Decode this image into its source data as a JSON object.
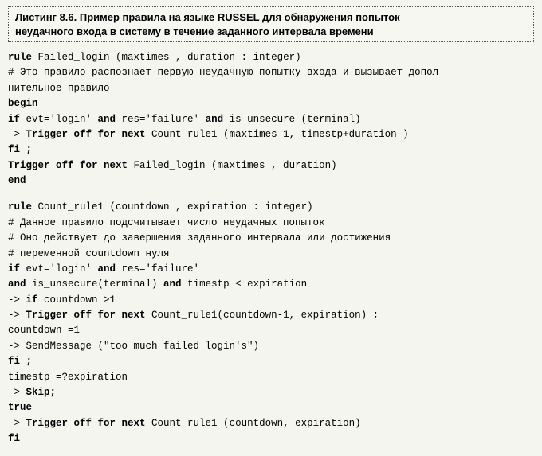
{
  "title": {
    "line1": "Листинг 8.6. Пример правила на языке RUSSEL для обнаружения попыток",
    "line2": "неудачного входа в систему в течение заданного интервала времени"
  },
  "lines": [
    {
      "segs": [
        {
          "t": "rule ",
          "b": true
        },
        {
          "t": "Failed_login (maxtimes , duration : integer)"
        }
      ]
    },
    {
      "segs": [
        {
          "t": "# Это правило распознает первую неудачную попытку входа и вызывает допол-"
        }
      ]
    },
    {
      "segs": [
        {
          "t": "нительное правило"
        }
      ]
    },
    {
      "segs": [
        {
          "t": "begin",
          "b": true
        }
      ]
    },
    {
      "segs": [
        {
          "t": "if ",
          "b": true
        },
        {
          "t": "evt='login' "
        },
        {
          "t": "and ",
          "b": true
        },
        {
          "t": "res='failure' "
        },
        {
          "t": "and ",
          "b": true
        },
        {
          "t": "is_unsecure (terminal)"
        }
      ]
    },
    {
      "segs": [
        {
          "t": "-> "
        },
        {
          "t": "Trigger off for next ",
          "b": true
        },
        {
          "t": "Count_rule1 (maxtimes-1, timestp+duration )"
        }
      ]
    },
    {
      "segs": [
        {
          "t": "fi ;",
          "b": true
        }
      ]
    },
    {
      "segs": [
        {
          "t": "Trigger off for next ",
          "b": true
        },
        {
          "t": "Failed_login (maxtimes , duration)"
        }
      ]
    },
    {
      "segs": [
        {
          "t": "end",
          "b": true
        }
      ]
    },
    {
      "blank": true
    },
    {
      "segs": [
        {
          "t": "rule ",
          "b": true
        },
        {
          "t": "Count_rule1 (countdown , expiration : integer)"
        }
      ]
    },
    {
      "segs": [
        {
          "t": "# Данное правило подсчитывает число неудачных попыток"
        }
      ]
    },
    {
      "segs": [
        {
          "t": "# Оно действует до завершения заданного интервала или достижения"
        }
      ]
    },
    {
      "segs": [
        {
          "t": "# переменной countdown нуля"
        }
      ]
    },
    {
      "segs": [
        {
          "t": "if ",
          "b": true
        },
        {
          "t": "evt='login' "
        },
        {
          "t": "and ",
          "b": true
        },
        {
          "t": "res='failure'"
        }
      ]
    },
    {
      "segs": [
        {
          "t": "and ",
          "b": true
        },
        {
          "t": "is_unsecure(terminal) "
        },
        {
          "t": "and ",
          "b": true
        },
        {
          "t": "timestp < expiration"
        }
      ]
    },
    {
      "segs": [
        {
          "t": "-> "
        },
        {
          "t": "if ",
          "b": true
        },
        {
          "t": "countdown >1"
        }
      ]
    },
    {
      "segs": [
        {
          "t": "-> "
        },
        {
          "t": "Trigger off for next ",
          "b": true
        },
        {
          "t": "Count_rule1(countdown-1, expiration) ;"
        }
      ]
    },
    {
      "segs": [
        {
          "t": "countdown =1"
        }
      ]
    },
    {
      "segs": [
        {
          "t": "-> SendMessage (\"too much failed login's\")"
        }
      ]
    },
    {
      "segs": [
        {
          "t": "fi ;",
          "b": true
        }
      ]
    },
    {
      "segs": [
        {
          "t": "timestp =?expiration"
        }
      ]
    },
    {
      "segs": [
        {
          "t": "-> "
        },
        {
          "t": "Skip;",
          "b": true
        }
      ]
    },
    {
      "segs": [
        {
          "t": "true",
          "b": true
        }
      ]
    },
    {
      "segs": [
        {
          "t": "-> "
        },
        {
          "t": "Trigger off for next ",
          "b": true
        },
        {
          "t": "Count_rule1 (countdown, expiration)"
        }
      ]
    },
    {
      "segs": [
        {
          "t": "fi",
          "b": true
        }
      ]
    }
  ]
}
